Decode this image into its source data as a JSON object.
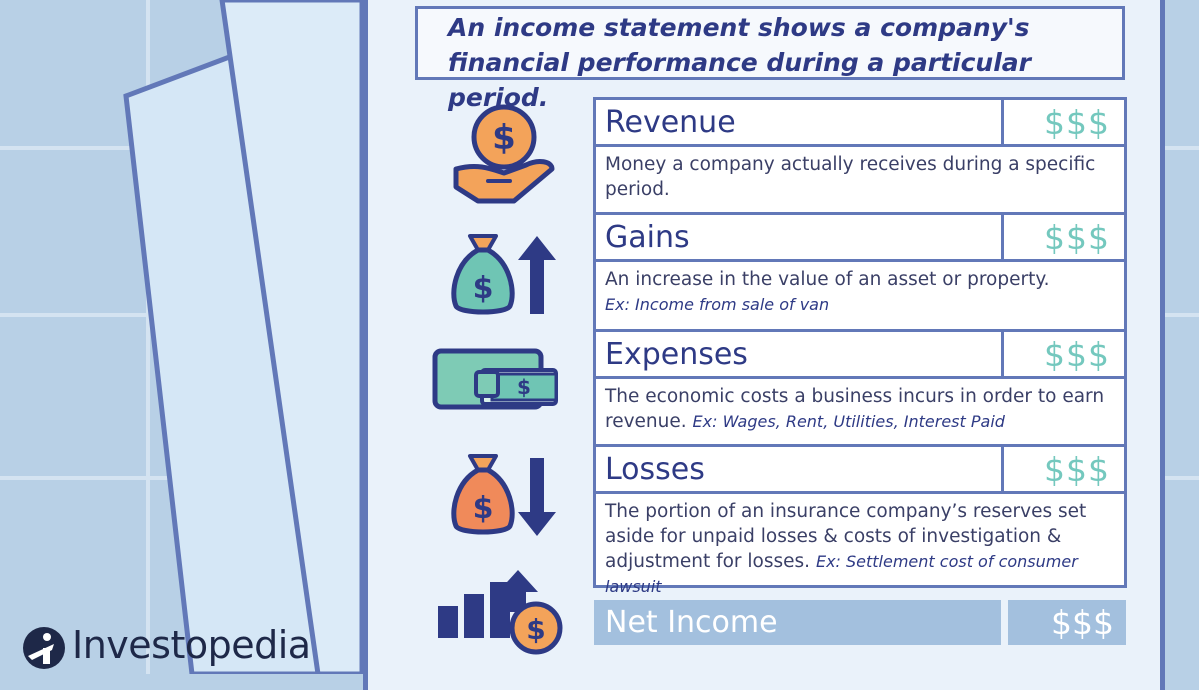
{
  "header": {
    "text": "An income statement shows a company's financial performance during a particular period."
  },
  "rows": [
    {
      "title": "Revenue",
      "amount": "$$$",
      "description": "Money a company actually receives during a specific period.",
      "example": ""
    },
    {
      "title": "Gains",
      "amount": "$$$",
      "description": "An increase in the value of an asset or property.",
      "example": "Ex: Income from sale of van"
    },
    {
      "title": "Expenses",
      "amount": "$$$",
      "description": "The economic costs a business incurs in order to earn revenue.",
      "example": "Ex: Wages, Rent, Utilities, Interest Paid"
    },
    {
      "title": "Losses",
      "amount": "$$$",
      "description": "The portion of an insurance company’s reserves set aside for unpaid losses & costs of investigation & adjustment for losses.",
      "example": "Ex: Settlement cost of consumer lawsuit"
    }
  ],
  "net_income": {
    "title": "Net Income",
    "amount": "$$$"
  },
  "icons": [
    "hand-coin-icon",
    "money-bag-up-icon",
    "wallet-icon",
    "money-bag-down-icon",
    "growth-chart-coin-icon"
  ],
  "brand": {
    "name": "Investopedia"
  },
  "colors": {
    "navy": "#2e3a85",
    "frame": "#6278b8",
    "teal": "#74c8be",
    "orange": "#f3a35a",
    "light_blue": "#a3c0de"
  }
}
